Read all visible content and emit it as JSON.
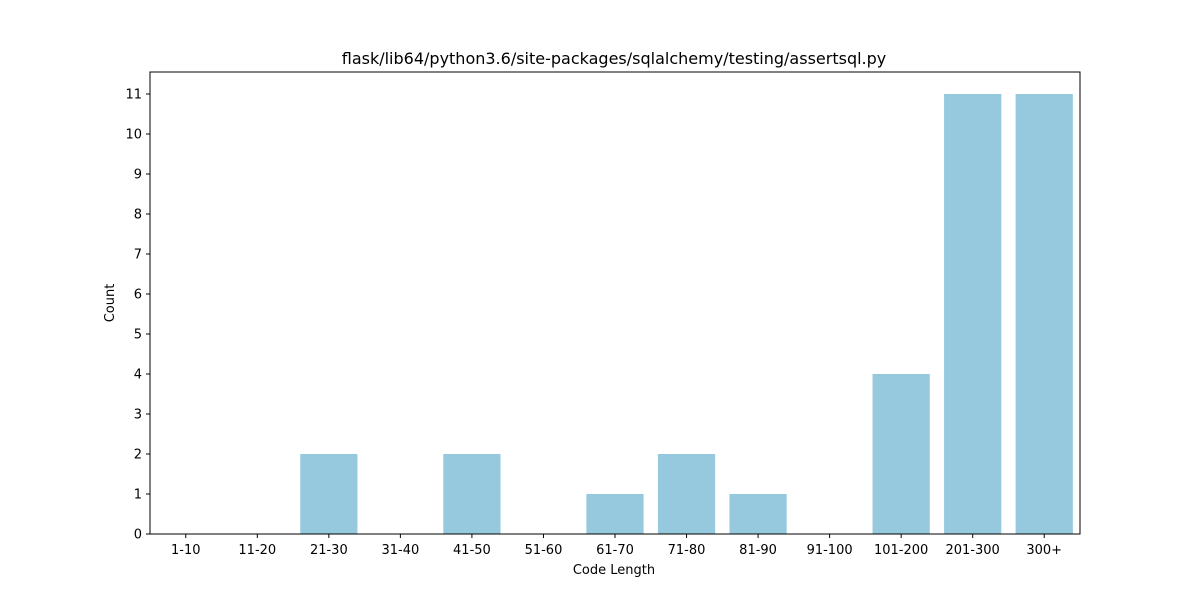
{
  "chart_data": {
    "type": "bar",
    "title": "flask/lib64/python3.6/site-packages/sqlalchemy/testing/assertsql.py",
    "xlabel": "Code Length",
    "ylabel": "Count",
    "categories": [
      "1-10",
      "11-20",
      "21-30",
      "31-40",
      "41-50",
      "51-60",
      "61-70",
      "71-80",
      "81-90",
      "91-100",
      "101-200",
      "201-300",
      "300+"
    ],
    "values": [
      0,
      0,
      2,
      0,
      2,
      0,
      1,
      2,
      1,
      0,
      4,
      11,
      11
    ],
    "ylim": [
      0,
      11.55
    ],
    "yticks": [
      0,
      1,
      2,
      3,
      4,
      5,
      6,
      7,
      8,
      9,
      10,
      11
    ],
    "bar_color": "#96c9dd",
    "grid": false,
    "legend": "none"
  }
}
